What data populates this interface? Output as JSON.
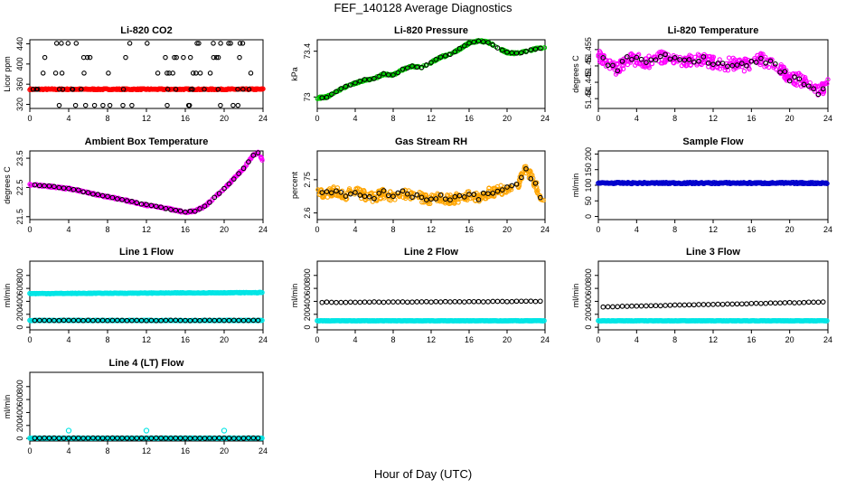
{
  "figure": {
    "title": "FEF_140128  Average Diagnostics",
    "xlabel": "Hour of Day (UTC)"
  },
  "chart_data": [
    {
      "type": "scatter",
      "title": "Li-820 CO2",
      "ylabel": "Licor ppm",
      "xlim": [
        0,
        24
      ],
      "ylim": [
        312,
        448
      ],
      "xticks": [
        "0",
        "4",
        "8",
        "12",
        "16",
        "20",
        "24"
      ],
      "yticks": [
        320,
        360,
        400,
        440
      ],
      "series": [
        {
          "color": "#ff0000",
          "values": {
            "y_band": [
              349,
              351
            ],
            "x_range": [
              0,
              24
            ]
          }
        },
        {
          "color": "#000000",
          "values": {
            "y_levels": [
              318,
              350,
              382,
              413,
              441
            ]
          }
        }
      ]
    },
    {
      "type": "scatter",
      "title": "Li-820 Pressure",
      "ylabel": "kPa",
      "xlim": [
        0,
        24
      ],
      "ylim": [
        72.9,
        73.5
      ],
      "xticks": [
        "0",
        "4",
        "8",
        "12",
        "16",
        "20",
        "24"
      ],
      "yticks": [
        73.0,
        73.4
      ],
      "series": [
        {
          "color": "#00cc00",
          "x": [
            0,
            1,
            2,
            3,
            4,
            5,
            6,
            7,
            8,
            9,
            10,
            11,
            12,
            13,
            14,
            15,
            16,
            17,
            18,
            19,
            20,
            21,
            22,
            23,
            24
          ],
          "y": [
            72.99,
            73.0,
            73.05,
            73.09,
            73.12,
            73.15,
            73.16,
            73.2,
            73.19,
            73.24,
            73.27,
            73.26,
            73.3,
            73.35,
            73.37,
            73.42,
            73.47,
            73.49,
            73.48,
            73.43,
            73.39,
            73.38,
            73.4,
            73.42,
            73.43
          ]
        }
      ]
    },
    {
      "type": "scatter",
      "title": "Li-820 Temperature",
      "ylabel": "degrees C",
      "xlim": [
        0,
        24
      ],
      "ylim": [
        51.437,
        51.458
      ],
      "xticks": [
        "0",
        "4",
        "8",
        "12",
        "16",
        "20",
        "24"
      ],
      "yticks": [
        51.44,
        51.445,
        51.45,
        51.455
      ],
      "series": [
        {
          "color": "#ff00ff",
          "x": [
            0,
            1,
            2,
            3,
            4,
            5,
            6,
            7,
            8,
            9,
            10,
            11,
            12,
            13,
            14,
            15,
            16,
            17,
            18,
            19,
            20,
            21,
            22,
            23,
            24
          ],
          "y": [
            51.453,
            51.451,
            51.449,
            51.452,
            51.452,
            51.451,
            51.452,
            51.453,
            51.452,
            51.451,
            51.452,
            51.452,
            51.451,
            51.45,
            51.451,
            51.45,
            51.451,
            51.452,
            51.451,
            51.449,
            51.446,
            51.446,
            51.444,
            51.442,
            51.444
          ]
        }
      ]
    },
    {
      "type": "scatter",
      "title": "Ambient Box Temperature",
      "ylabel": "degrees C",
      "xlim": [
        0,
        24
      ],
      "ylim": [
        21.4,
        23.75
      ],
      "xticks": [
        "0",
        "4",
        "8",
        "12",
        "16",
        "20",
        "24"
      ],
      "yticks": [
        21.5,
        22.5,
        23.5
      ],
      "series": [
        {
          "color": "#ff00ff",
          "x": [
            0,
            1,
            2,
            3,
            4,
            5,
            6,
            7,
            8,
            9,
            10,
            11,
            12,
            13,
            14,
            15,
            16,
            17,
            18,
            19,
            20,
            21,
            22,
            23,
            23.5,
            24
          ],
          "y": [
            22.6,
            22.57,
            22.54,
            22.5,
            22.46,
            22.4,
            22.32,
            22.25,
            22.18,
            22.12,
            22.05,
            21.97,
            21.9,
            21.84,
            21.79,
            21.72,
            21.65,
            21.7,
            21.85,
            22.15,
            22.45,
            22.8,
            23.15,
            23.6,
            23.7,
            23.4
          ]
        }
      ]
    },
    {
      "type": "scatter",
      "title": "Gas Stream RH",
      "ylabel": "percent",
      "xlim": [
        0,
        24
      ],
      "ylim": [
        2.57,
        2.88
      ],
      "xticks": [
        "0",
        "4",
        "8",
        "12",
        "16",
        "20",
        "24"
      ],
      "yticks": [
        2.6,
        2.75
      ],
      "series": [
        {
          "color": "#ffa500",
          "x": [
            0,
            1,
            2,
            3,
            4,
            5,
            6,
            7,
            8,
            9,
            10,
            11,
            12,
            13,
            14,
            15,
            16,
            17,
            18,
            19,
            20,
            21,
            22,
            23,
            24
          ],
          "y": [
            2.69,
            2.69,
            2.7,
            2.68,
            2.7,
            2.68,
            2.67,
            2.69,
            2.67,
            2.69,
            2.68,
            2.67,
            2.66,
            2.67,
            2.66,
            2.67,
            2.68,
            2.67,
            2.69,
            2.7,
            2.71,
            2.72,
            2.8,
            2.73,
            2.63
          ]
        }
      ]
    },
    {
      "type": "scatter",
      "title": "Sample Flow",
      "ylabel": "ml/min",
      "xlim": [
        0,
        24
      ],
      "ylim": [
        -10,
        210
      ],
      "xticks": [
        "0",
        "4",
        "8",
        "12",
        "16",
        "20",
        "24"
      ],
      "yticks": [
        0,
        50,
        100,
        150,
        200
      ],
      "series": [
        {
          "color": "#0000cc",
          "values": {
            "y_level": 107,
            "x_range": [
              0,
              24
            ]
          }
        }
      ]
    },
    {
      "type": "scatter",
      "title": "Line 1 Flow",
      "ylabel": "ml/min",
      "xlim": [
        0,
        24
      ],
      "ylim": [
        -40,
        1020
      ],
      "xticks": [
        "0",
        "4",
        "8",
        "12",
        "16",
        "20",
        "24"
      ],
      "yticks": [
        0,
        200,
        400,
        600,
        800
      ],
      "series": [
        {
          "color": "#00e5e5",
          "values": {
            "y_start": 520,
            "y_end": 535,
            "x_range": [
              0,
              24
            ]
          }
        },
        {
          "color": "#00e5e5",
          "values": {
            "y_level": 105,
            "x_range": [
              0,
              24
            ]
          }
        },
        {
          "color": "#000000",
          "values": {
            "y_level": 105,
            "x_range": [
              0.5,
              23.5
            ]
          }
        }
      ]
    },
    {
      "type": "scatter",
      "title": "Line 2 Flow",
      "ylabel": "ml/min",
      "xlim": [
        0,
        24
      ],
      "ylim": [
        -40,
        1020
      ],
      "xticks": [
        "0",
        "4",
        "8",
        "12",
        "16",
        "20",
        "24"
      ],
      "yticks": [
        0,
        200,
        400,
        600,
        800
      ],
      "series": [
        {
          "color": "#00e5e5",
          "values": {
            "y_level": 100,
            "x_range": [
              0,
              24
            ]
          }
        },
        {
          "color": "#000000",
          "values": {
            "y_start": 385,
            "y_end": 400,
            "x_range": [
              0.5,
              23.5
            ]
          }
        }
      ]
    },
    {
      "type": "scatter",
      "title": "Line 3 Flow",
      "ylabel": "ml/min",
      "xlim": [
        0,
        24
      ],
      "ylim": [
        -40,
        1020
      ],
      "xticks": [
        "0",
        "4",
        "8",
        "12",
        "16",
        "20",
        "24"
      ],
      "yticks": [
        0,
        200,
        400,
        600,
        800
      ],
      "series": [
        {
          "color": "#00e5e5",
          "values": {
            "y_level": 100,
            "x_range": [
              0,
              24
            ]
          }
        },
        {
          "color": "#000000",
          "values": {
            "y_start": 315,
            "y_end": 390,
            "x_range": [
              0.5,
              23.5
            ]
          }
        }
      ]
    },
    {
      "type": "scatter",
      "title": "Line 4 (LT) Flow",
      "ylabel": "ml/min",
      "xlim": [
        0,
        24
      ],
      "ylim": [
        -40,
        1020
      ],
      "xticks": [
        "0",
        "4",
        "8",
        "12",
        "16",
        "20",
        "24"
      ],
      "yticks": [
        0,
        200,
        400,
        600,
        800
      ],
      "series": [
        {
          "color": "#00e5e5",
          "values": {
            "y_level": 5,
            "x_range": [
              0,
              24
            ],
            "spikes_at": [
              4,
              12,
              20
            ],
            "spike_y": 120
          }
        },
        {
          "color": "#000000",
          "values": {
            "y_level": 5,
            "x_range": [
              0.5,
              23.5
            ]
          }
        }
      ]
    }
  ]
}
